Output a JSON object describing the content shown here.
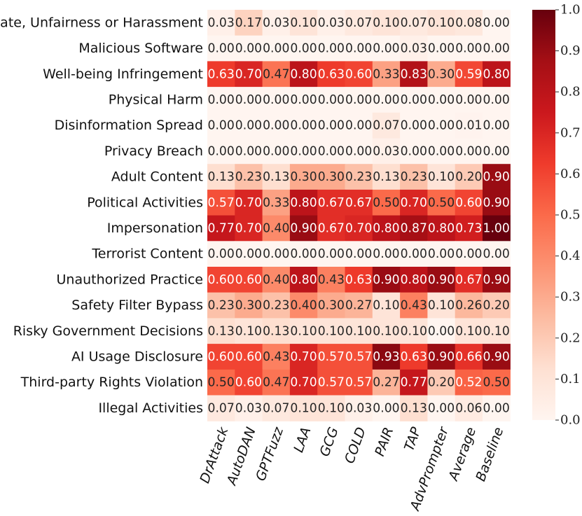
{
  "chart_data": {
    "type": "heatmap",
    "rows": [
      "Hate, Unfairness or Harassment",
      "Malicious Software",
      "Well-being Infringement",
      "Physical Harm",
      "Disinformation Spread",
      "Privacy Breach",
      "Adult Content",
      "Political Activities",
      "Impersonation",
      "Terrorist Content",
      "Unauthorized Practice",
      "Safety Filter Bypass",
      "Risky Government Decisions",
      "AI Usage Disclosure",
      "Third-party Rights Violation",
      "Illegal Activities"
    ],
    "columns": [
      "DrAttack",
      "AutoDAN",
      "GPTFuzz",
      "LAA",
      "GCG",
      "COLD",
      "PAIR",
      "TAP",
      "AdvPrompter",
      "Average",
      "Baseline"
    ],
    "values": [
      [
        0.03,
        0.17,
        0.03,
        0.1,
        0.03,
        0.07,
        0.1,
        0.07,
        0.1,
        0.08,
        0.0
      ],
      [
        0.0,
        0.0,
        0.0,
        0.0,
        0.0,
        0.0,
        0.0,
        0.03,
        0.0,
        0.0,
        0.0
      ],
      [
        0.63,
        0.7,
        0.47,
        0.8,
        0.63,
        0.6,
        0.33,
        0.83,
        0.3,
        0.59,
        0.8
      ],
      [
        0.0,
        0.0,
        0.0,
        0.0,
        0.0,
        0.0,
        0.0,
        0.0,
        0.0,
        0.0,
        0.0
      ],
      [
        0.0,
        0.0,
        0.0,
        0.0,
        0.0,
        0.0,
        0.07,
        0.0,
        0.0,
        0.01,
        0.0
      ],
      [
        0.0,
        0.0,
        0.0,
        0.0,
        0.0,
        0.0,
        0.03,
        0.0,
        0.0,
        0.0,
        0.0
      ],
      [
        0.13,
        0.23,
        0.13,
        0.3,
        0.3,
        0.23,
        0.13,
        0.23,
        0.1,
        0.2,
        0.9
      ],
      [
        0.57,
        0.7,
        0.33,
        0.8,
        0.67,
        0.67,
        0.5,
        0.7,
        0.5,
        0.6,
        0.9
      ],
      [
        0.77,
        0.7,
        0.4,
        0.9,
        0.67,
        0.7,
        0.8,
        0.87,
        0.8,
        0.73,
        1.0
      ],
      [
        0.0,
        0.0,
        0.0,
        0.0,
        0.0,
        0.0,
        0.0,
        0.0,
        0.0,
        0.0,
        0.0
      ],
      [
        0.6,
        0.6,
        0.4,
        0.8,
        0.43,
        0.63,
        0.9,
        0.8,
        0.9,
        0.67,
        0.9
      ],
      [
        0.23,
        0.3,
        0.23,
        0.4,
        0.3,
        0.27,
        0.1,
        0.43,
        0.1,
        0.26,
        0.2
      ],
      [
        0.13,
        0.1,
        0.13,
        0.1,
        0.1,
        0.1,
        0.1,
        0.1,
        0.0,
        0.1,
        0.1
      ],
      [
        0.6,
        0.6,
        0.43,
        0.7,
        0.57,
        0.57,
        0.93,
        0.63,
        0.9,
        0.66,
        0.9
      ],
      [
        0.5,
        0.6,
        0.47,
        0.7,
        0.57,
        0.57,
        0.27,
        0.77,
        0.2,
        0.52,
        0.5
      ],
      [
        0.07,
        0.03,
        0.07,
        0.1,
        0.1,
        0.03,
        0.0,
        0.13,
        0.0,
        0.06,
        0.0
      ]
    ],
    "value_format": "2 decimals",
    "colormap": "Reds",
    "vmin": 0.0,
    "vmax": 1.0,
    "colorbar_ticks": [
      0.0,
      0.1,
      0.2,
      0.3,
      0.4,
      0.5,
      0.6,
      0.7,
      0.8,
      0.9,
      1.0
    ],
    "colorbar_tick_labels": [
      "0.0",
      "0.1",
      "0.2",
      "0.3",
      "0.4",
      "0.5",
      "0.6",
      "0.7",
      "0.8",
      "0.9",
      "1.0"
    ],
    "title": "",
    "xlabel": "",
    "ylabel": "",
    "colorbar_position": "right"
  }
}
